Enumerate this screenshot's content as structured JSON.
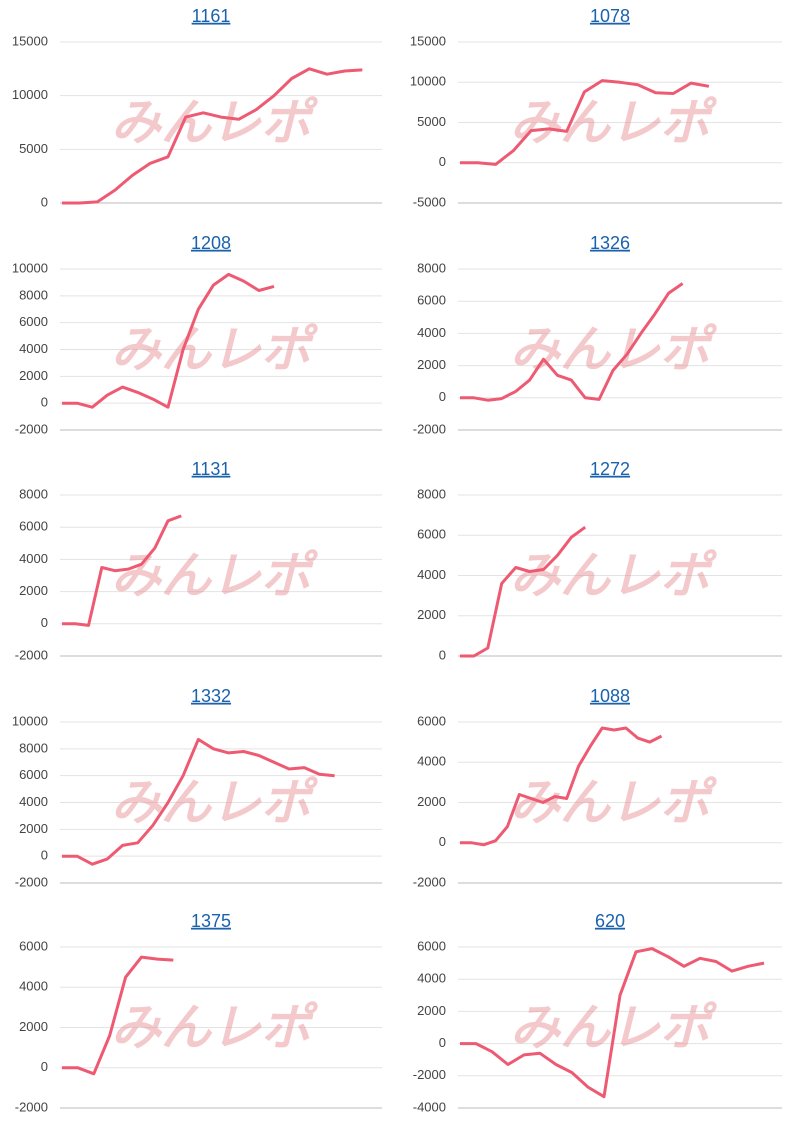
{
  "watermark": "みんレポ",
  "chart_data": [
    {
      "type": "line",
      "title": "1161",
      "color": "#ee5a72",
      "ylim": [
        0,
        15000
      ],
      "yticks": [
        0,
        5000,
        10000,
        15000
      ],
      "grid": true,
      "categories": [
        null,
        null,
        null,
        null,
        null,
        null,
        null,
        null,
        null,
        null,
        null,
        null,
        null,
        null,
        null,
        null,
        null,
        null,
        null
      ],
      "values": [
        0,
        0,
        100,
        1200,
        2600,
        3700,
        4300,
        8000,
        8400,
        8000,
        7800,
        8700,
        10000,
        11600,
        12500,
        12000,
        12300,
        12400,
        null
      ]
    },
    {
      "type": "line",
      "title": "1078",
      "color": "#ee5a72",
      "ylim": [
        -5000,
        15000
      ],
      "yticks": [
        -5000,
        0,
        5000,
        10000,
        15000
      ],
      "grid": true,
      "categories": [
        null,
        null,
        null,
        null,
        null,
        null,
        null,
        null,
        null,
        null,
        null,
        null,
        null,
        null,
        null,
        null,
        null,
        null,
        null
      ],
      "values": [
        0,
        0,
        -200,
        1500,
        4000,
        4200,
        3900,
        8800,
        10200,
        10000,
        9700,
        8700,
        8600,
        9900,
        9500,
        null,
        null,
        null,
        null
      ]
    },
    {
      "type": "line",
      "title": "1208",
      "color": "#ee5a72",
      "ylim": [
        -2000,
        10000
      ],
      "yticks": [
        -2000,
        0,
        2000,
        4000,
        6000,
        8000,
        10000
      ],
      "grid": true,
      "categories": [
        null,
        null,
        null,
        null,
        null,
        null,
        null,
        null,
        null,
        null,
        null,
        null,
        null,
        null,
        null,
        null,
        null,
        null,
        null,
        null,
        null,
        null
      ],
      "values": [
        0,
        0,
        -300,
        600,
        1200,
        800,
        300,
        -300,
        4000,
        7000,
        8800,
        9600,
        9100,
        8400,
        8700,
        null,
        null,
        null,
        null,
        null,
        null,
        null
      ]
    },
    {
      "type": "line",
      "title": "1326",
      "color": "#ee5a72",
      "ylim": [
        -2000,
        8000
      ],
      "yticks": [
        -2000,
        0,
        2000,
        4000,
        6000,
        8000
      ],
      "grid": true,
      "categories": [
        null,
        null,
        null,
        null,
        null,
        null,
        null,
        null,
        null,
        null,
        null,
        null,
        null,
        null,
        null,
        null,
        null,
        null,
        null,
        null,
        null,
        null,
        null,
        null
      ],
      "values": [
        0,
        0,
        -150,
        -50,
        400,
        1100,
        2400,
        1400,
        1100,
        0,
        -100,
        1700,
        2700,
        4000,
        5200,
        6500,
        7100,
        null,
        null,
        null,
        null,
        null,
        null,
        null
      ]
    },
    {
      "type": "line",
      "title": "1131",
      "color": "#ee5a72",
      "ylim": [
        -2000,
        8000
      ],
      "yticks": [
        -2000,
        0,
        2000,
        4000,
        6000,
        8000
      ],
      "grid": true,
      "categories": [
        null,
        null,
        null,
        null,
        null,
        null,
        null,
        null,
        null,
        null,
        null,
        null,
        null,
        null,
        null,
        null,
        null,
        null,
        null,
        null,
        null,
        null,
        null,
        null,
        null
      ],
      "values": [
        0,
        0,
        -100,
        3500,
        3300,
        3400,
        3700,
        4700,
        6400,
        6700,
        null,
        null,
        null,
        null,
        null,
        null,
        null,
        null,
        null,
        null,
        null,
        null,
        null,
        null,
        null
      ]
    },
    {
      "type": "line",
      "title": "1272",
      "color": "#ee5a72",
      "ylim": [
        0,
        8000
      ],
      "yticks": [
        0,
        2000,
        4000,
        6000,
        8000
      ],
      "grid": true,
      "categories": [
        null,
        null,
        null,
        null,
        null,
        null,
        null,
        null,
        null,
        null,
        null,
        null,
        null,
        null,
        null,
        null,
        null,
        null,
        null,
        null,
        null,
        null,
        null,
        null
      ],
      "values": [
        0,
        0,
        400,
        3600,
        4400,
        4200,
        4300,
        5000,
        5900,
        6400,
        null,
        null,
        null,
        null,
        null,
        null,
        null,
        null,
        null,
        null,
        null,
        null,
        null,
        null
      ]
    },
    {
      "type": "line",
      "title": "1332",
      "color": "#ee5a72",
      "ylim": [
        -2000,
        10000
      ],
      "yticks": [
        -2000,
        0,
        2000,
        4000,
        6000,
        8000,
        10000
      ],
      "grid": true,
      "categories": [
        null,
        null,
        null,
        null,
        null,
        null,
        null,
        null,
        null,
        null,
        null,
        null,
        null,
        null,
        null,
        null,
        null,
        null,
        null,
        null,
        null,
        null
      ],
      "values": [
        0,
        0,
        -600,
        -200,
        800,
        1000,
        2300,
        4000,
        6000,
        8700,
        8000,
        7700,
        7800,
        7500,
        7000,
        6500,
        6600,
        6100,
        6000,
        null,
        null,
        null
      ]
    },
    {
      "type": "line",
      "title": "1088",
      "color": "#ee5a72",
      "ylim": [
        -2000,
        6000
      ],
      "yticks": [
        -2000,
        0,
        2000,
        4000,
        6000
      ],
      "grid": true,
      "categories": [
        null,
        null,
        null,
        null,
        null,
        null,
        null,
        null,
        null,
        null,
        null,
        null,
        null,
        null,
        null,
        null,
        null,
        null,
        null,
        null,
        null,
        null,
        null,
        null,
        null,
        null,
        null,
        null
      ],
      "values": [
        0,
        0,
        -100,
        100,
        800,
        2400,
        2200,
        2000,
        2300,
        2200,
        3800,
        4800,
        5700,
        5600,
        5700,
        5200,
        5000,
        5300,
        null,
        null,
        null,
        null,
        null,
        null,
        null,
        null,
        null,
        null
      ]
    },
    {
      "type": "line",
      "title": "1375",
      "color": "#ee5a72",
      "ylim": [
        -2000,
        6000
      ],
      "yticks": [
        -2000,
        0,
        2000,
        4000,
        6000
      ],
      "grid": true,
      "categories": [
        null,
        null,
        null,
        null,
        null,
        null,
        null,
        null,
        null,
        null,
        null,
        null,
        null,
        null,
        null,
        null,
        null,
        null,
        null,
        null,
        null
      ],
      "values": [
        0,
        0,
        -300,
        1600,
        4500,
        5500,
        5400,
        5350,
        null,
        null,
        null,
        null,
        null,
        null,
        null,
        null,
        null,
        null,
        null,
        null,
        null
      ]
    },
    {
      "type": "line",
      "title": "620",
      "color": "#ee5a72",
      "ylim": [
        -4000,
        6000
      ],
      "yticks": [
        -4000,
        -2000,
        0,
        2000,
        4000,
        6000
      ],
      "grid": true,
      "categories": [
        null,
        null,
        null,
        null,
        null,
        null,
        null,
        null,
        null,
        null,
        null,
        null,
        null,
        null,
        null,
        null,
        null,
        null,
        null,
        null,
        null
      ],
      "values": [
        0,
        0,
        -500,
        -1300,
        -700,
        -600,
        -1300,
        -1800,
        -2700,
        -3300,
        3000,
        5700,
        5900,
        5400,
        4800,
        5300,
        5100,
        4500,
        4800,
        5000,
        null
      ]
    }
  ]
}
